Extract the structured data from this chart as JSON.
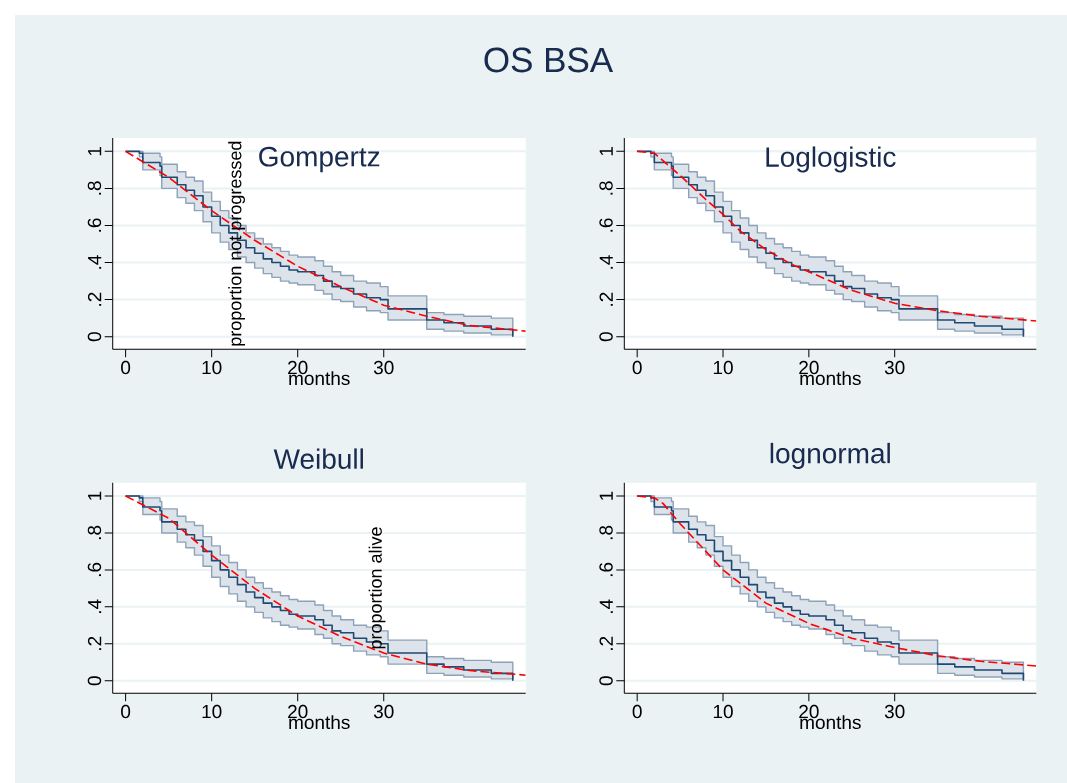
{
  "chart_data": [
    {
      "type": "other",
      "title": "OS BSA"
    },
    {
      "type": "step",
      "title": "Gompertz",
      "xlabel": "months",
      "xlim": [
        -1.5,
        46.5
      ],
      "ylim": [
        -0.068,
        1.072
      ],
      "xticks": [
        0,
        10,
        20,
        30
      ],
      "yticks": [
        {
          "value": 0,
          "label": "0"
        },
        {
          "value": 0.2,
          "label": ".2"
        },
        {
          "value": 0.4,
          "label": ".4"
        },
        {
          "value": 0.6,
          "label": ".6"
        },
        {
          "value": 0.8,
          "label": ".8"
        },
        {
          "value": 1,
          "label": "1"
        }
      ],
      "grid": "y",
      "annotations": [
        "proportion not progressed"
      ],
      "series": [
        {
          "type": "step",
          "color": "#1f4a73",
          "x": [
            0,
            1.6,
            2,
            4,
            4.2,
            6,
            7,
            8,
            9,
            10,
            11,
            12,
            13,
            14,
            15,
            16,
            17,
            18,
            19,
            20,
            22,
            23,
            24,
            25,
            26.5,
            28,
            29.6,
            30.5,
            35,
            37,
            39.3,
            42.5,
            45
          ],
          "values": [
            1,
            0.99,
            0.94,
            0.92,
            0.86,
            0.82,
            0.79,
            0.76,
            0.7,
            0.65,
            0.6,
            0.56,
            0.52,
            0.48,
            0.45,
            0.42,
            0.4,
            0.38,
            0.36,
            0.35,
            0.33,
            0.3,
            0.27,
            0.26,
            0.23,
            0.21,
            0.2,
            0.15,
            0.09,
            0.075,
            0.058,
            0.04,
            0
          ],
          "upper": [
            1,
            1,
            0.99,
            0.97,
            0.93,
            0.89,
            0.86,
            0.84,
            0.78,
            0.73,
            0.68,
            0.64,
            0.6,
            0.56,
            0.53,
            0.5,
            0.48,
            0.46,
            0.44,
            0.43,
            0.41,
            0.38,
            0.35,
            0.33,
            0.3,
            0.29,
            0.27,
            0.22,
            0.13,
            0.12,
            0.11,
            0.1,
            0.1
          ],
          "lower": [
            1,
            0.97,
            0.9,
            0.87,
            0.8,
            0.75,
            0.72,
            0.68,
            0.62,
            0.56,
            0.51,
            0.47,
            0.43,
            0.4,
            0.37,
            0.34,
            0.32,
            0.3,
            0.29,
            0.28,
            0.25,
            0.23,
            0.2,
            0.19,
            0.16,
            0.14,
            0.13,
            0.09,
            0.04,
            0.03,
            0.02,
            0.01,
            0.01
          ]
        },
        {
          "type": "line",
          "color": "#ff0000",
          "line_style": "dashed",
          "x": [
            0,
            5,
            10,
            15,
            20,
            25,
            30,
            35,
            40,
            46.5
          ],
          "values": [
            1,
            0.86,
            0.68,
            0.52,
            0.38,
            0.27,
            0.17,
            0.11,
            0.06,
            0.03
          ]
        }
      ]
    },
    {
      "type": "step",
      "title": "Loglogistic",
      "xlabel": "months",
      "xlim": [
        -1.5,
        46.5
      ],
      "ylim": [
        -0.068,
        1.072
      ],
      "xticks": [
        0,
        10,
        20,
        30
      ],
      "yticks": [
        {
          "value": 0,
          "label": "0"
        },
        {
          "value": 0.2,
          "label": ".2"
        },
        {
          "value": 0.4,
          "label": ".4"
        },
        {
          "value": 0.6,
          "label": ".6"
        },
        {
          "value": 0.8,
          "label": ".8"
        },
        {
          "value": 1,
          "label": "1"
        }
      ],
      "grid": "y",
      "series": [
        {
          "type": "step",
          "color": "#1f4a73",
          "x": [
            0,
            1.6,
            2,
            4,
            4.2,
            6,
            7,
            8,
            9,
            10,
            11,
            12,
            13,
            14,
            15,
            16,
            17,
            18,
            19,
            20,
            22,
            23,
            24,
            25,
            26.5,
            28,
            29.6,
            30.5,
            35,
            37,
            39.3,
            42.5,
            45
          ],
          "values": [
            1,
            0.99,
            0.94,
            0.92,
            0.86,
            0.82,
            0.79,
            0.76,
            0.7,
            0.65,
            0.6,
            0.56,
            0.52,
            0.48,
            0.45,
            0.42,
            0.4,
            0.38,
            0.36,
            0.35,
            0.33,
            0.3,
            0.27,
            0.26,
            0.23,
            0.21,
            0.2,
            0.15,
            0.09,
            0.075,
            0.058,
            0.04,
            0
          ],
          "upper": [
            1,
            1,
            0.99,
            0.97,
            0.93,
            0.89,
            0.86,
            0.84,
            0.78,
            0.73,
            0.68,
            0.64,
            0.6,
            0.56,
            0.53,
            0.5,
            0.48,
            0.46,
            0.44,
            0.43,
            0.41,
            0.38,
            0.35,
            0.33,
            0.3,
            0.29,
            0.27,
            0.22,
            0.13,
            0.12,
            0.11,
            0.1,
            0.1
          ],
          "lower": [
            1,
            0.97,
            0.9,
            0.87,
            0.8,
            0.75,
            0.72,
            0.68,
            0.62,
            0.56,
            0.51,
            0.47,
            0.43,
            0.4,
            0.37,
            0.34,
            0.32,
            0.3,
            0.29,
            0.28,
            0.25,
            0.23,
            0.2,
            0.19,
            0.16,
            0.14,
            0.13,
            0.09,
            0.04,
            0.03,
            0.02,
            0.01,
            0.01
          ]
        },
        {
          "type": "line",
          "color": "#ff0000",
          "line_style": "dashed",
          "x": [
            0,
            2,
            5,
            8,
            10,
            12,
            15,
            18,
            20,
            25,
            30,
            35,
            40,
            46.5
          ],
          "values": [
            1,
            0.99,
            0.87,
            0.74,
            0.66,
            0.57,
            0.47,
            0.39,
            0.35,
            0.25,
            0.18,
            0.14,
            0.11,
            0.085
          ]
        }
      ]
    },
    {
      "type": "step",
      "title": "Weibull",
      "xlabel": "months",
      "xlim": [
        -1.5,
        46.5
      ],
      "ylim": [
        -0.068,
        1.072
      ],
      "xticks": [
        0,
        10,
        20,
        30
      ],
      "yticks": [
        {
          "value": 0,
          "label": "0"
        },
        {
          "value": 0.2,
          "label": ".2"
        },
        {
          "value": 0.4,
          "label": ".4"
        },
        {
          "value": 0.6,
          "label": ".6"
        },
        {
          "value": 0.8,
          "label": ".8"
        },
        {
          "value": 1,
          "label": "1"
        }
      ],
      "grid": "y",
      "annotations": [
        "proportion alive"
      ],
      "series": [
        {
          "type": "step",
          "color": "#1f4a73",
          "x": [
            0,
            1.6,
            2,
            4,
            4.2,
            6,
            7,
            8,
            9,
            10,
            11,
            12,
            13,
            14,
            15,
            16,
            17,
            18,
            19,
            20,
            22,
            23,
            24,
            25,
            26.5,
            28,
            29.6,
            30.5,
            35,
            37,
            39.3,
            42.5,
            45
          ],
          "values": [
            1,
            0.99,
            0.94,
            0.92,
            0.86,
            0.82,
            0.79,
            0.76,
            0.7,
            0.65,
            0.6,
            0.56,
            0.52,
            0.48,
            0.45,
            0.42,
            0.4,
            0.38,
            0.36,
            0.35,
            0.33,
            0.3,
            0.27,
            0.26,
            0.23,
            0.21,
            0.2,
            0.15,
            0.09,
            0.075,
            0.058,
            0.04,
            0
          ],
          "upper": [
            1,
            1,
            0.99,
            0.97,
            0.93,
            0.89,
            0.86,
            0.84,
            0.78,
            0.73,
            0.68,
            0.64,
            0.6,
            0.56,
            0.53,
            0.5,
            0.48,
            0.46,
            0.44,
            0.43,
            0.41,
            0.38,
            0.35,
            0.33,
            0.3,
            0.29,
            0.27,
            0.22,
            0.13,
            0.12,
            0.11,
            0.1,
            0.1
          ],
          "lower": [
            1,
            0.97,
            0.9,
            0.87,
            0.8,
            0.75,
            0.72,
            0.68,
            0.62,
            0.56,
            0.51,
            0.47,
            0.43,
            0.4,
            0.37,
            0.34,
            0.32,
            0.3,
            0.29,
            0.28,
            0.25,
            0.23,
            0.2,
            0.19,
            0.16,
            0.14,
            0.13,
            0.09,
            0.04,
            0.03,
            0.02,
            0.01,
            0.01
          ]
        },
        {
          "type": "line",
          "color": "#ff0000",
          "line_style": "dashed",
          "x": [
            0,
            5,
            10,
            15,
            20,
            25,
            30,
            35,
            40,
            46.5
          ],
          "values": [
            1,
            0.88,
            0.68,
            0.5,
            0.35,
            0.24,
            0.15,
            0.09,
            0.055,
            0.03
          ]
        }
      ]
    },
    {
      "type": "step",
      "title": "lognormal",
      "xlabel": "months",
      "xlim": [
        -1.5,
        46.5
      ],
      "ylim": [
        -0.068,
        1.072
      ],
      "xticks": [
        0,
        10,
        20,
        30
      ],
      "yticks": [
        {
          "value": 0,
          "label": "0"
        },
        {
          "value": 0.2,
          "label": ".2"
        },
        {
          "value": 0.4,
          "label": ".4"
        },
        {
          "value": 0.6,
          "label": ".6"
        },
        {
          "value": 0.8,
          "label": ".8"
        },
        {
          "value": 1,
          "label": "1"
        }
      ],
      "grid": "y",
      "series": [
        {
          "type": "step",
          "color": "#1f4a73",
          "x": [
            0,
            1.6,
            2,
            4,
            4.2,
            6,
            7,
            8,
            9,
            10,
            11,
            12,
            13,
            14,
            15,
            16,
            17,
            18,
            19,
            20,
            22,
            23,
            24,
            25,
            26.5,
            28,
            29.6,
            30.5,
            35,
            37,
            39.3,
            42.5,
            45
          ],
          "values": [
            1,
            0.99,
            0.94,
            0.92,
            0.86,
            0.82,
            0.79,
            0.76,
            0.7,
            0.65,
            0.6,
            0.56,
            0.52,
            0.48,
            0.45,
            0.42,
            0.4,
            0.38,
            0.36,
            0.35,
            0.33,
            0.3,
            0.27,
            0.26,
            0.23,
            0.21,
            0.2,
            0.15,
            0.09,
            0.075,
            0.058,
            0.04,
            0
          ],
          "upper": [
            1,
            1,
            0.99,
            0.97,
            0.93,
            0.89,
            0.86,
            0.84,
            0.78,
            0.73,
            0.68,
            0.64,
            0.6,
            0.56,
            0.53,
            0.5,
            0.48,
            0.46,
            0.44,
            0.43,
            0.41,
            0.38,
            0.35,
            0.33,
            0.3,
            0.29,
            0.27,
            0.22,
            0.13,
            0.12,
            0.11,
            0.1,
            0.1
          ],
          "lower": [
            1,
            0.97,
            0.9,
            0.87,
            0.8,
            0.75,
            0.72,
            0.68,
            0.62,
            0.56,
            0.51,
            0.47,
            0.43,
            0.4,
            0.37,
            0.34,
            0.32,
            0.3,
            0.29,
            0.28,
            0.25,
            0.23,
            0.2,
            0.19,
            0.16,
            0.14,
            0.13,
            0.09,
            0.04,
            0.03,
            0.02,
            0.01,
            0.01
          ]
        },
        {
          "type": "line",
          "color": "#ff0000",
          "line_style": "dashed",
          "x": [
            0,
            2,
            3,
            5,
            8,
            10,
            15,
            20,
            25,
            30,
            35,
            40,
            46.5
          ],
          "values": [
            1,
            0.99,
            0.96,
            0.85,
            0.7,
            0.6,
            0.42,
            0.31,
            0.23,
            0.18,
            0.135,
            0.105,
            0.08
          ]
        }
      ]
    }
  ]
}
